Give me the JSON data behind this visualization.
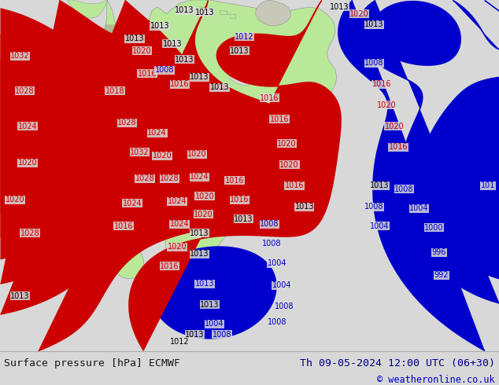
{
  "title_left": "Surface pressure [hPa] ECMWF",
  "title_right": "Th 09-05-2024 12:00 UTC (06+30)",
  "copyright": "© weatheronline.co.uk",
  "bg_color": "#d8d8d8",
  "land_color": "#b8e898",
  "ocean_color": "#d8d8d8",
  "mountain_color": "#b0a898",
  "footer_bg": "#e8e8e8",
  "text_color_left": "#1a1a1a",
  "text_color_right": "#00008b",
  "isobar_red": "#cc0000",
  "isobar_blue": "#0000cc",
  "isobar_black": "#000000",
  "figsize": [
    6.34,
    4.9
  ],
  "dpi": 100,
  "label_fontsize": 7.0
}
